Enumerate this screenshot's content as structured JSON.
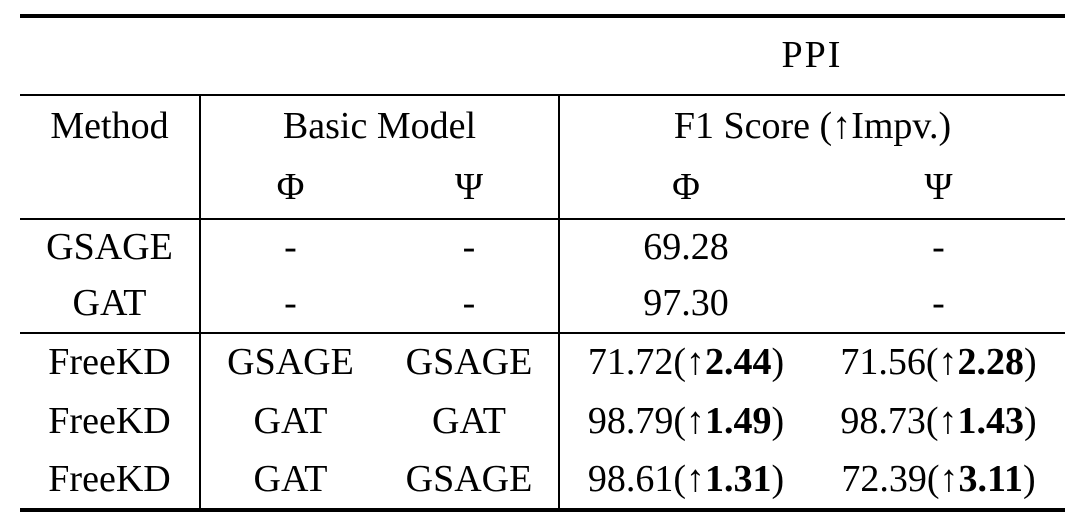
{
  "table": {
    "dataset": "PPI",
    "arrow": "↑",
    "headers": {
      "method": "Method",
      "basic_model": "Basic Model",
      "f1_score": "F1 Score (↑Impv.)",
      "phi": "Φ",
      "psi": "Ψ"
    },
    "rows": [
      {
        "group": "baseline",
        "rule_below": false,
        "method": "GSAGE",
        "bm_phi": "-",
        "bm_psi": "-",
        "f1_phi": {
          "value": "69.28",
          "impv": null
        },
        "f1_psi": {
          "value": "-",
          "impv": null
        }
      },
      {
        "group": "baseline",
        "rule_below": true,
        "method": "GAT",
        "bm_phi": "-",
        "bm_psi": "-",
        "f1_phi": {
          "value": "97.30",
          "impv": null
        },
        "f1_psi": {
          "value": "-",
          "impv": null
        }
      },
      {
        "group": "freekd",
        "rule_below": false,
        "method": "FreeKD",
        "bm_phi": "GSAGE",
        "bm_psi": "GSAGE",
        "f1_phi": {
          "value": "71.72",
          "impv": "2.44"
        },
        "f1_psi": {
          "value": "71.56",
          "impv": "2.28"
        }
      },
      {
        "group": "freekd",
        "rule_below": false,
        "method": "FreeKD",
        "bm_phi": "GAT",
        "bm_psi": "GAT",
        "f1_phi": {
          "value": "98.79",
          "impv": "1.49"
        },
        "f1_psi": {
          "value": "98.73",
          "impv": "1.43"
        }
      },
      {
        "group": "freekd",
        "rule_below": false,
        "method": "FreeKD",
        "bm_phi": "GAT",
        "bm_psi": "GSAGE",
        "f1_phi": {
          "value": "98.61",
          "impv": "1.31"
        },
        "f1_psi": {
          "value": "72.39",
          "impv": "3.11"
        }
      }
    ]
  }
}
